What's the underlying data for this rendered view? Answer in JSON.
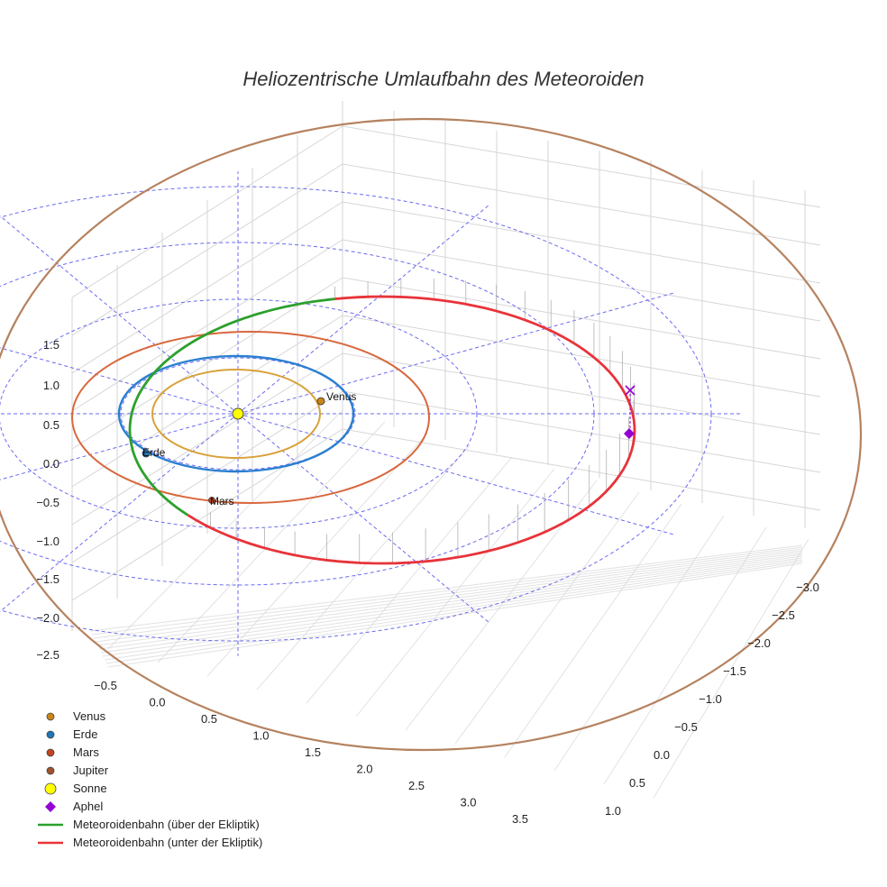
{
  "chart_data": {
    "type": "scatter",
    "title": "Heliozentrische Umlaufbahn des Meteoroiden",
    "x_ticks": [
      "−0.5",
      "0.0",
      "0.5",
      "1.0",
      "1.5",
      "2.0",
      "2.5",
      "3.0",
      "3.5"
    ],
    "y_ticks": [
      "−3.0",
      "−2.5",
      "−2.0",
      "−1.5",
      "−1.0",
      "−0.5",
      "0.0",
      "0.5",
      "1.0"
    ],
    "z_ticks": [
      "1.5",
      "1.0",
      "0.5",
      "0.0",
      "−0.5",
      "−1.0",
      "−1.5",
      "−2.0",
      "−2.5"
    ],
    "planet_labels": {
      "venus": "Venus",
      "earth": "Erde",
      "mars": "Mars"
    },
    "colors": {
      "venus": "#c8861a",
      "venus_orbit": "#d9a13a",
      "earth": "#1f77b4",
      "earth_orbit": "#2a7fd0",
      "mars": "#c0451f",
      "mars_orbit": "#d8683e",
      "jupiter": "#a0522d",
      "jupiter_orbit": "#b5825f",
      "sun": "#ffff00",
      "aphel": "#9400d3",
      "above": "#2ca02c",
      "below": "#e8333a",
      "grid": "#d6d6d6",
      "reference": "#6b6bf0"
    },
    "legend": [
      {
        "key": "venus",
        "label": "Venus",
        "symbol": "circle"
      },
      {
        "key": "earth",
        "label": "Erde",
        "symbol": "circle"
      },
      {
        "key": "mars",
        "label": "Mars",
        "symbol": "circle"
      },
      {
        "key": "jupiter",
        "label": "Jupiter",
        "symbol": "circle"
      },
      {
        "key": "sun",
        "label": "Sonne",
        "symbol": "circle-lg"
      },
      {
        "key": "aphel",
        "label": "Aphel",
        "symbol": "diamond"
      },
      {
        "key": "above",
        "label": "Meteoroidenbahn (über der Ekliptik)",
        "symbol": "line"
      },
      {
        "key": "below",
        "label": "Meteoroidenbahn (unter der Ekliptik)",
        "symbol": "line"
      }
    ]
  }
}
